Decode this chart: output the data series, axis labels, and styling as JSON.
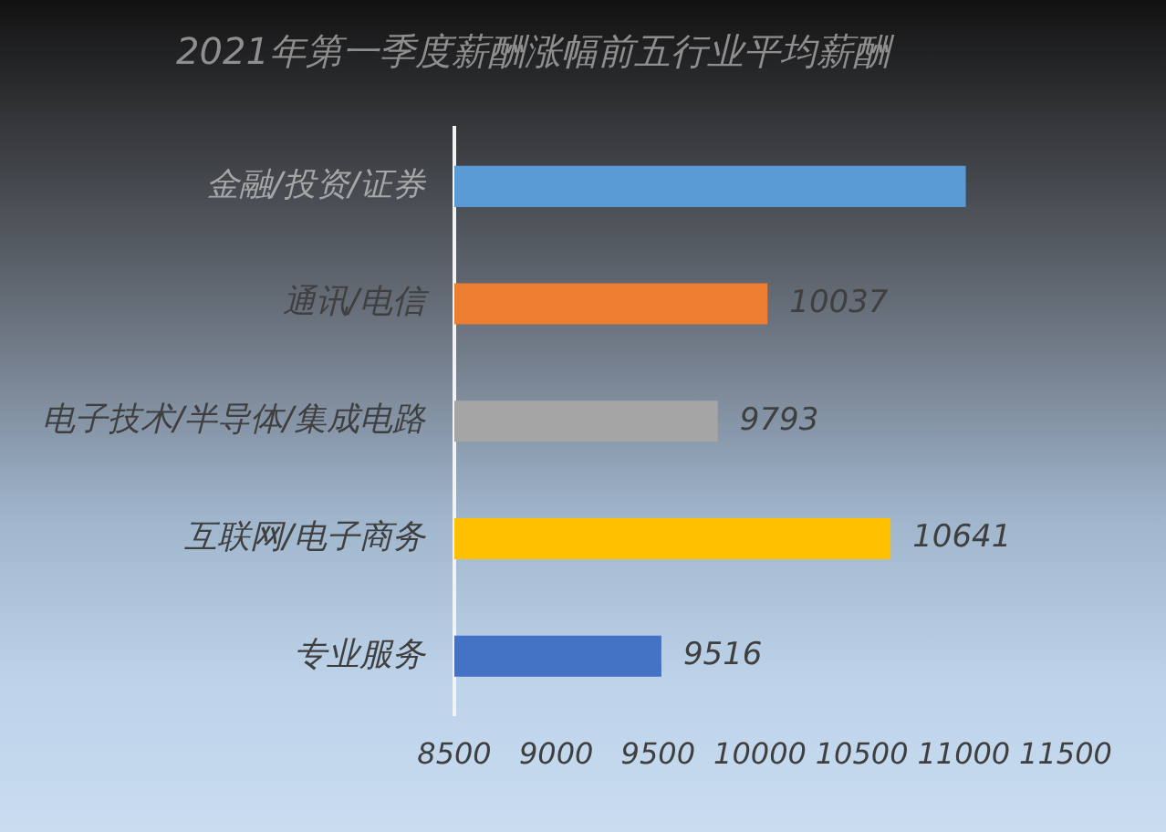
{
  "chart_data": {
    "type": "bar",
    "orientation": "horizontal",
    "title": "2021年第一季度薪酬涨幅前五行业平均薪酬",
    "categories": [
      "金融/投资/证券",
      "通讯/电信",
      "电子技术/半导体/集成电路",
      "互联网/电子商务",
      "专业服务"
    ],
    "values": [
      11010,
      10037,
      9793,
      10641,
      9516
    ],
    "colors": [
      "#5b9bd5",
      "#ed7d31",
      "#a5a5a5",
      "#ffc000",
      "#4472c4"
    ],
    "value_labels": [
      null,
      "10037",
      "9793",
      "10641",
      "9516"
    ],
    "xlim": [
      8500,
      11500
    ],
    "xticks": [
      8500,
      9000,
      9500,
      10000,
      10500,
      11000,
      11500
    ]
  }
}
